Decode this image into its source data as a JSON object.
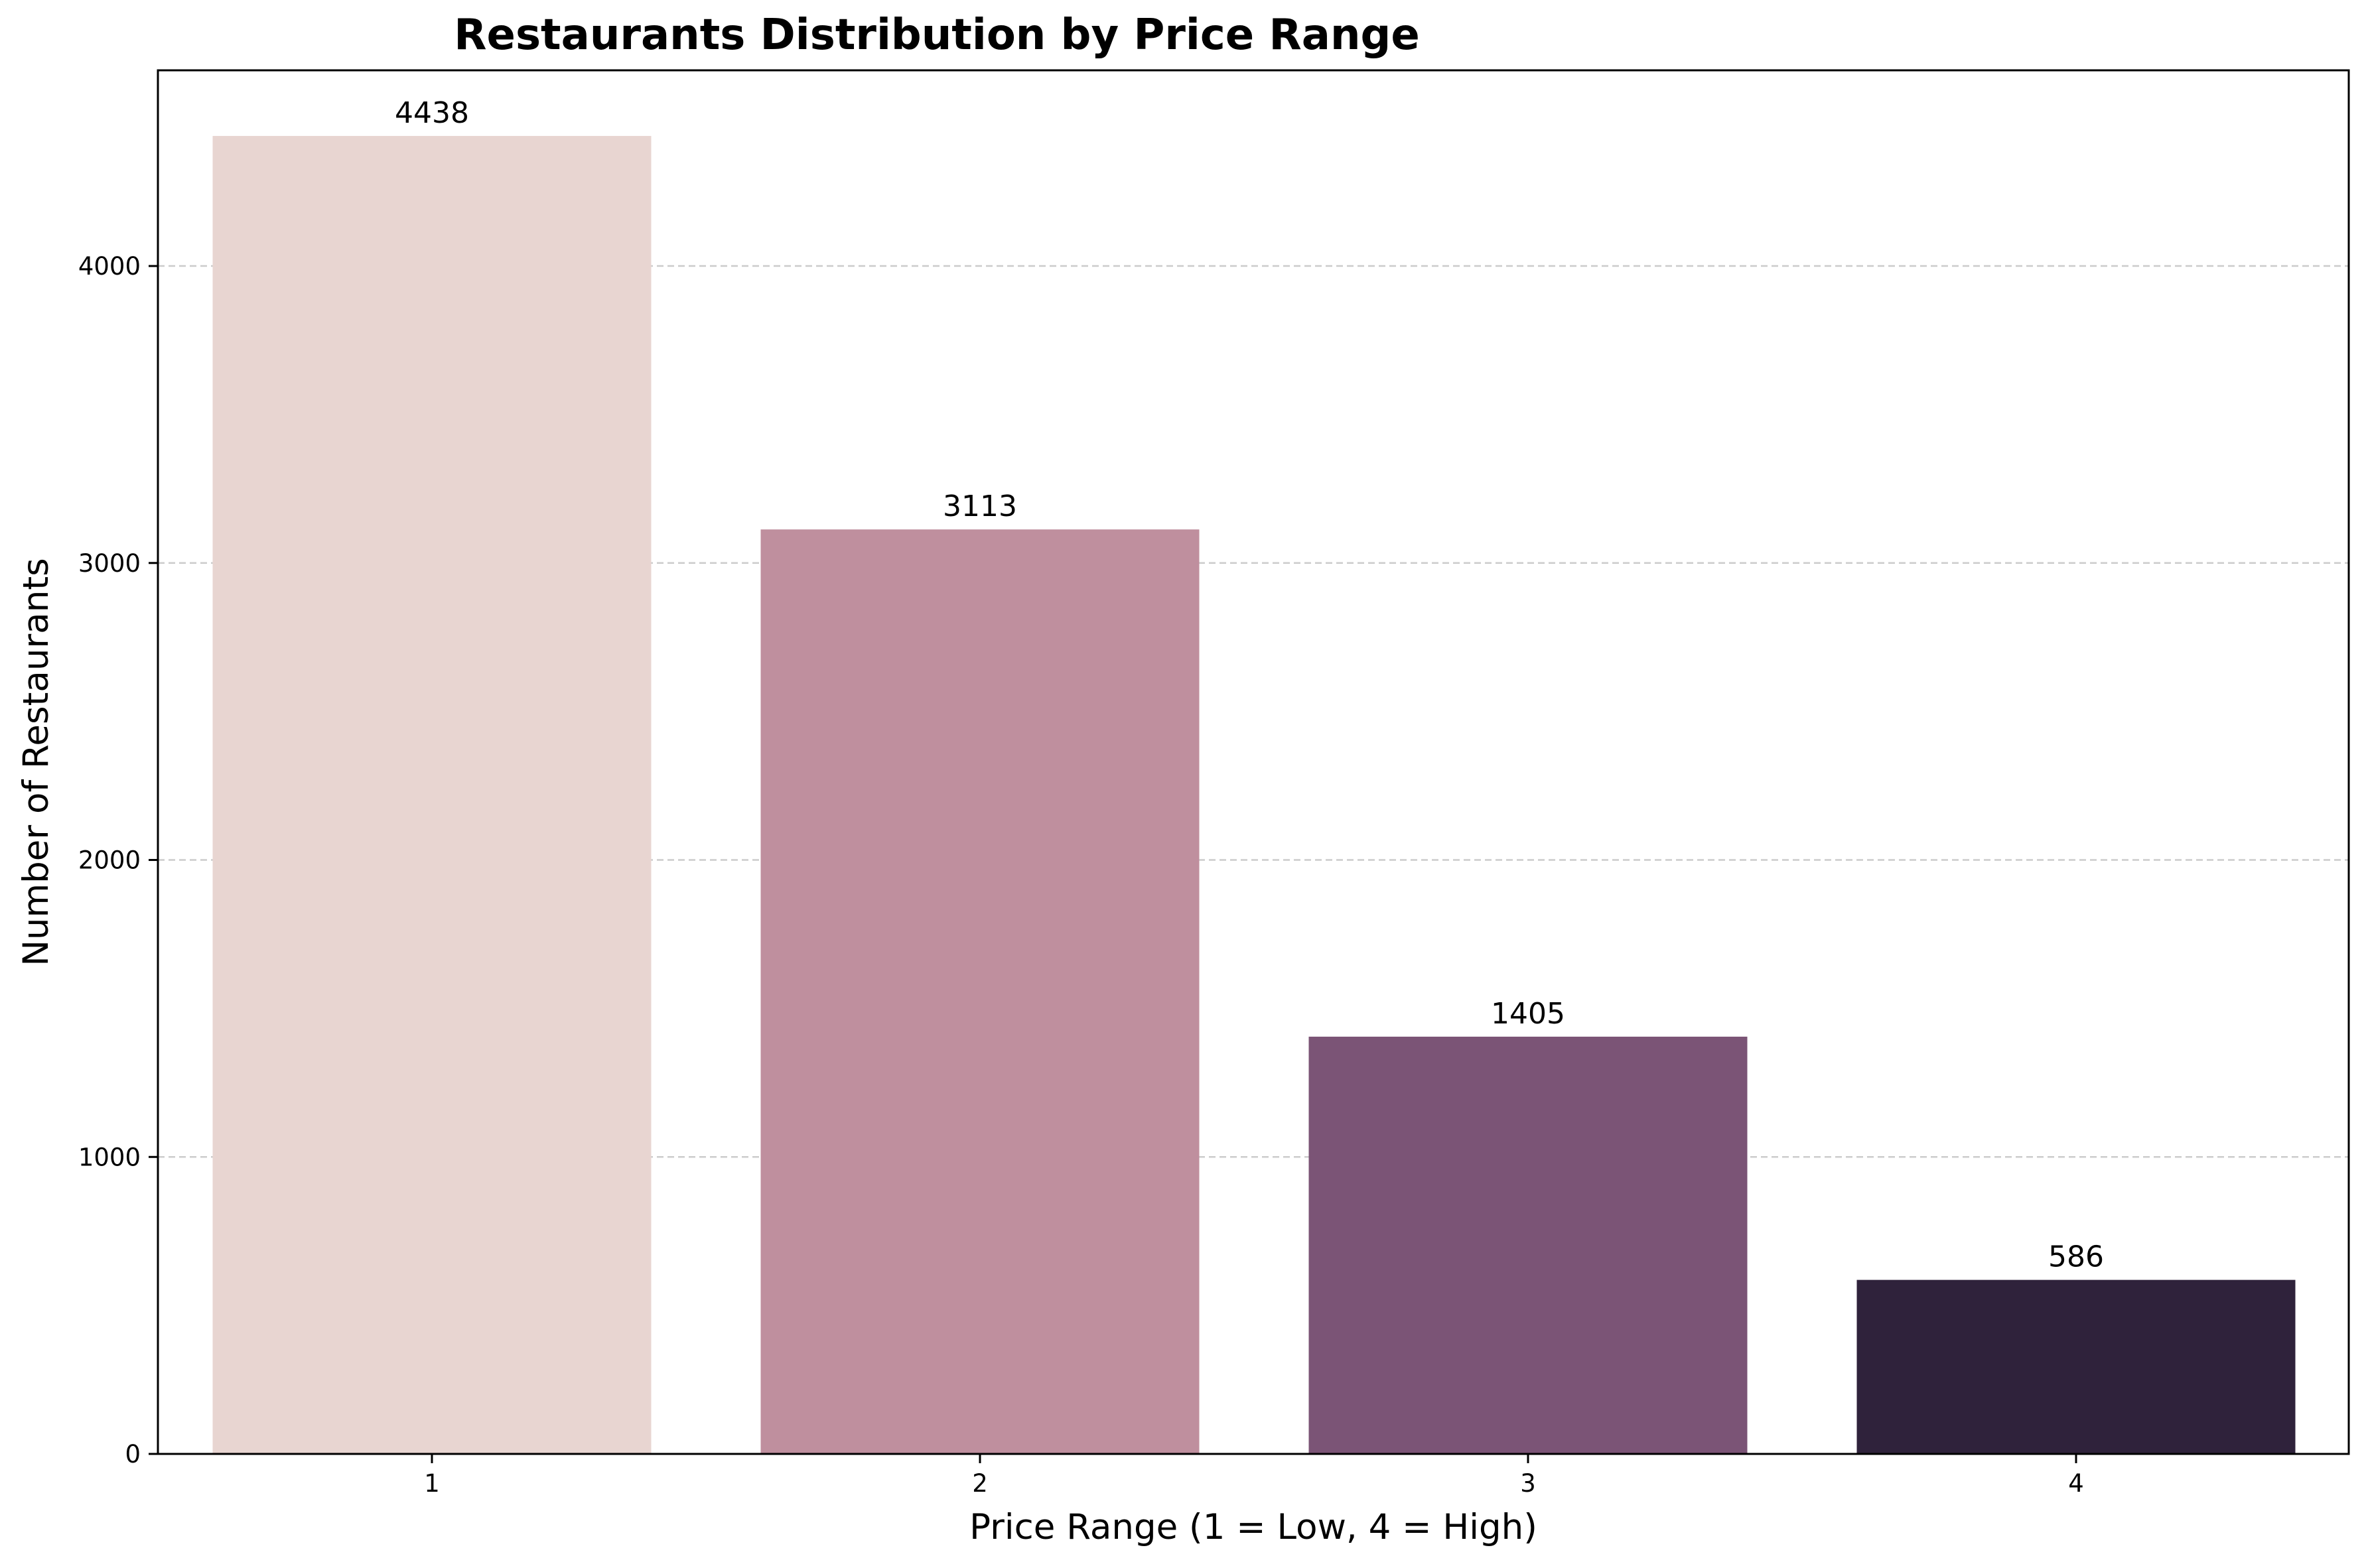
{
  "chart_data": {
    "type": "bar",
    "title": "Restaurants Distribution by Price Range",
    "xlabel": "Price Range (1 = Low, 4 = High)",
    "ylabel": "Number of Restaurants",
    "categories": [
      "1",
      "2",
      "3",
      "4"
    ],
    "values": [
      4438,
      3113,
      1405,
      586
    ],
    "value_labels": [
      "4438",
      "3113",
      "1405",
      "586"
    ],
    "colors": [
      "#e8d5d1",
      "#bf8f9e",
      "#7b5476",
      "#2f223b"
    ],
    "ylim": [
      0,
      4659
    ],
    "yticks": [
      0,
      1000,
      2000,
      3000,
      4000
    ],
    "ytick_labels": [
      "0",
      "1000",
      "2000",
      "3000",
      "4000"
    ],
    "grid": "y-axis dashed",
    "legend": "none"
  }
}
